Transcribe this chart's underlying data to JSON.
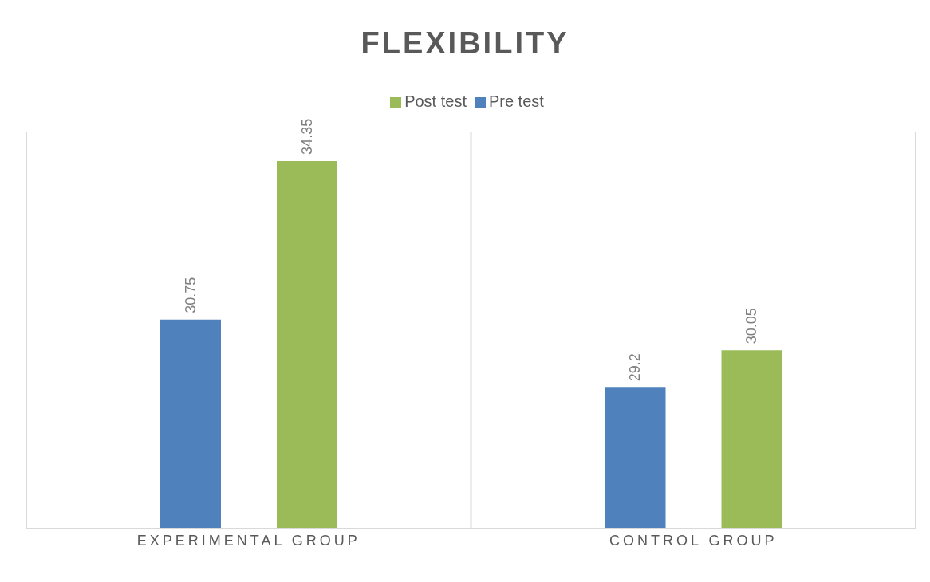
{
  "chart_data": {
    "type": "bar",
    "title": "FLEXIBILITY",
    "categories": [
      "EXPERIMENTAL GROUP",
      "CONTROL GROUP"
    ],
    "series": [
      {
        "name": "Pre test",
        "color": "#4f81bd",
        "values": [
          30.75,
          29.2
        ]
      },
      {
        "name": "Post test",
        "color": "#9bbb59",
        "values": [
          34.35,
          30.05
        ]
      }
    ],
    "ylim": [
      26,
      35
    ],
    "tick_labels": "x",
    "data_labels": true,
    "grid": "x",
    "legend": "top"
  }
}
